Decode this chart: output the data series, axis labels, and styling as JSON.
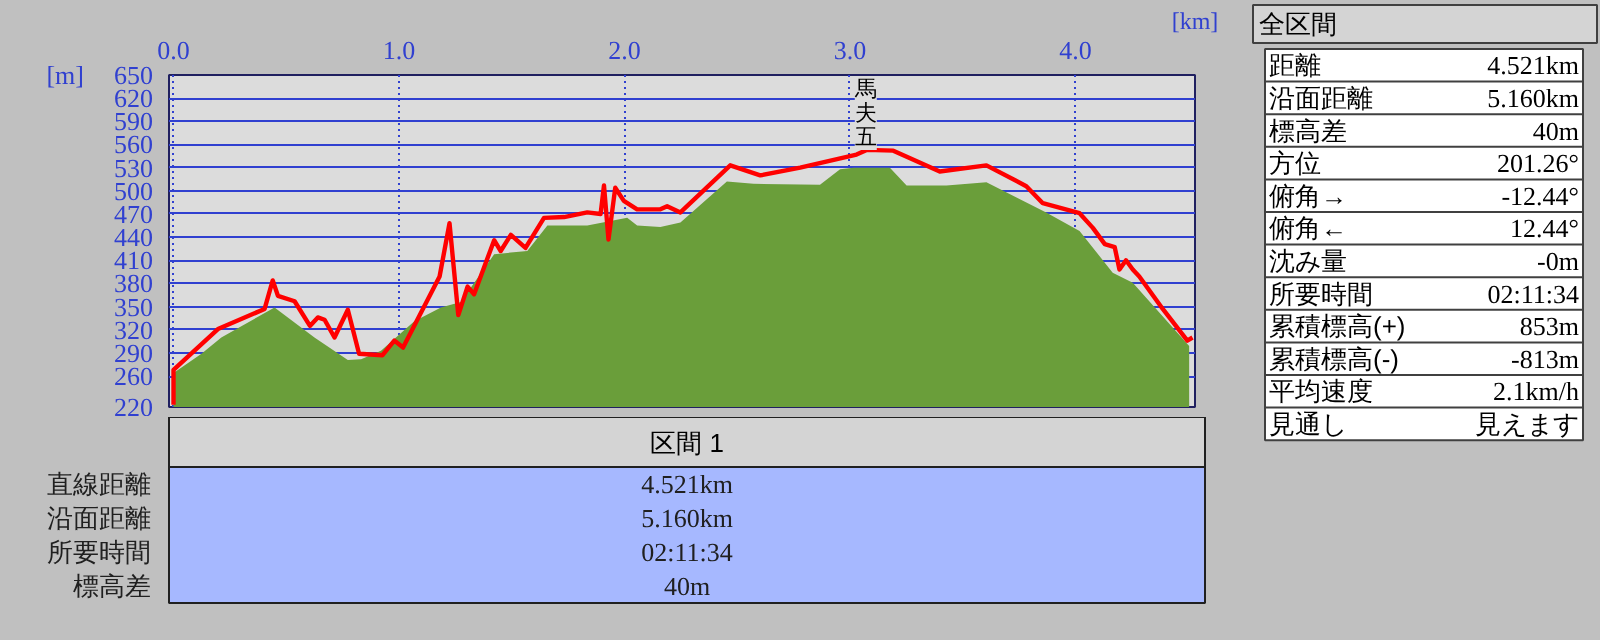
{
  "chart_data": [
    {
      "type": "line",
      "xlabel": "[km]",
      "ylabel": "[m]",
      "xlim": [
        -0.02,
        4.53
      ],
      "ylim": [
        220,
        650
      ],
      "xticks": [
        {
          "value": 0,
          "label": "0.0"
        },
        {
          "value": 1,
          "label": "1.0"
        },
        {
          "value": 2,
          "label": "2.0"
        },
        {
          "value": 3,
          "label": "3.0"
        },
        {
          "value": 4,
          "label": "4.0"
        }
      ],
      "yticks": [
        220,
        260,
        290,
        320,
        350,
        380,
        410,
        440,
        470,
        500,
        530,
        560,
        590,
        620,
        650
      ],
      "grid": true,
      "series": [
        {
          "type": "area",
          "color": "#6a9e3a",
          "x": [
            0,
            0.124,
            0.212,
            0.448,
            0.625,
            0.773,
            0.832,
            0.92,
            1.068,
            1.186,
            1.274,
            1.422,
            1.569,
            1.658,
            1.835,
            2.012,
            2.056,
            2.159,
            2.248,
            2.454,
            2.572,
            2.867,
            2.956,
            3.015,
            3.177,
            3.251,
            3.428,
            3.605,
            3.87,
            4.018,
            4.165,
            4.254,
            4.504
          ],
          "values": [
            264,
            289,
            310,
            349,
            310,
            281,
            282,
            293,
            331,
            349,
            356,
            418,
            422,
            455,
            455,
            465,
            455,
            453,
            459,
            512,
            509,
            508,
            528,
            530,
            530,
            507,
            507,
            511,
            472,
            448,
            394,
            381,
            299
          ]
        },
        {
          "type": "line",
          "color": "#ff0000",
          "x": [
            0,
            0,
            0.197,
            0.404,
            0.44,
            0.463,
            0.537,
            0.605,
            0.64,
            0.67,
            0.714,
            0.773,
            0.823,
            0.926,
            0.979,
            1.018,
            1.18,
            1.224,
            1.263,
            1.304,
            1.333,
            1.422,
            1.451,
            1.496,
            1.561,
            1.643,
            1.732,
            1.835,
            1.894,
            1.909,
            1.929,
            1.959,
            1.997,
            2.056,
            2.159,
            2.189,
            2.248,
            2.469,
            2.602,
            2.779,
            3.029,
            3.074,
            3.192,
            3.398,
            3.605,
            3.782,
            3.855,
            4.018,
            4.077,
            4.13,
            4.174,
            4.195,
            4.224,
            4.254,
            4.283,
            4.387,
            4.496,
            4.519
          ],
          "values": [
            223,
            268,
            321,
            347,
            384,
            364,
            357,
            325,
            336,
            333,
            310,
            346,
            289,
            287,
            306,
            297,
            389,
            458,
            339,
            376,
            366,
            436,
            422,
            443,
            426,
            465,
            466,
            472,
            470,
            507,
            437,
            504,
            487,
            476,
            476,
            480,
            472,
            533,
            520,
            530,
            547,
            553,
            552,
            525,
            533,
            506,
            484,
            471,
            452,
            431,
            427,
            398,
            410,
            398,
            389,
            347,
            306,
            310
          ]
        }
      ],
      "annotations": [
        {
          "text": "馬夫五",
          "x": 3.07,
          "y": 553
        }
      ]
    },
    {
      "type": "other",
      "title": "全区間",
      "y_categories": [
        "距離",
        "沿面距離",
        "標高差",
        "方位",
        "俯角→",
        "俯角←",
        "沈み量",
        "所要時間",
        "累積標高(+)",
        "累積標高(-)",
        "平均速度",
        "見通し"
      ],
      "cell_labels": [
        [
          "4.521km"
        ],
        [
          "5.160km"
        ],
        [
          "40m"
        ],
        [
          "201.26°"
        ],
        [
          "-12.44°"
        ],
        [
          "12.44°"
        ],
        [
          "-0m"
        ],
        [
          "02:11:34"
        ],
        [
          "853m"
        ],
        [
          "-813m"
        ],
        [
          "2.1km/h"
        ],
        [
          "見えます"
        ]
      ]
    },
    {
      "type": "other",
      "title": "区間 1",
      "y_categories": [
        "直線距離",
        "沿面距離",
        "所要時間",
        "標高差"
      ],
      "cell_labels": [
        [
          "4.521km"
        ],
        [
          "5.160km"
        ],
        [
          "02:11:34"
        ],
        [
          "40m"
        ]
      ]
    }
  ]
}
